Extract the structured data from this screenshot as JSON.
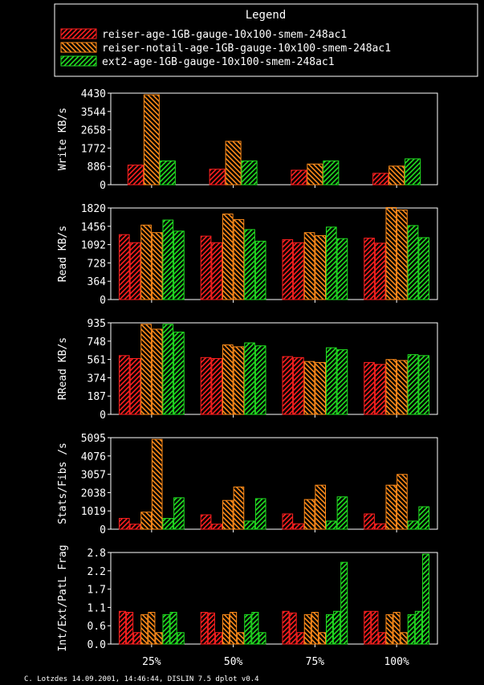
{
  "legend": {
    "title": "Legend",
    "entries": [
      {
        "label": "reiser-age-1GB-gauge-10x100-smem-248ac1",
        "color": "#ff2020"
      },
      {
        "label": "reiser-notail-age-1GB-gauge-10x100-smem-248ac1",
        "color": "#ff8c1a"
      },
      {
        "label": "ext2-age-1GB-gauge-10x100-smem-248ac1",
        "color": "#22e022"
      }
    ]
  },
  "footer": "C. Lotzdes 14.09.2001, 14:46:44, DISLIN 7.5 dplot v0.4",
  "chart_data": [
    {
      "type": "bar",
      "ylabel": "Write KB/s",
      "ylim": [
        0,
        4430
      ],
      "yticks": [
        "0",
        "886",
        "1772",
        "2658",
        "3544",
        "4430"
      ],
      "categories": [
        "25%",
        "50%",
        "75%",
        "100%"
      ],
      "bars_per_group": 3,
      "series_of_bar": [
        0,
        1,
        2
      ],
      "values": [
        [
          950,
          4350,
          1150
        ],
        [
          750,
          2100,
          1150
        ],
        [
          700,
          1000,
          1150
        ],
        [
          550,
          900,
          1250
        ]
      ]
    },
    {
      "type": "bar",
      "ylabel": "Read KB/s",
      "ylim": [
        0,
        1820
      ],
      "yticks": [
        "0",
        "364",
        "728",
        "1092",
        "1456",
        "1820"
      ],
      "categories": [
        "25%",
        "50%",
        "75%",
        "100%"
      ],
      "bars_per_group": 6,
      "series_of_bar": [
        0,
        0,
        1,
        1,
        2,
        2
      ],
      "values": [
        [
          1290,
          1130,
          1480,
          1330,
          1580,
          1360
        ],
        [
          1260,
          1130,
          1700,
          1590,
          1390,
          1160
        ],
        [
          1190,
          1130,
          1330,
          1270,
          1440,
          1210
        ],
        [
          1220,
          1120,
          1830,
          1780,
          1470,
          1230
        ]
      ]
    },
    {
      "type": "bar",
      "ylabel": "RRead KB/s",
      "ylim": [
        0,
        935
      ],
      "yticks": [
        "0",
        "187",
        "374",
        "561",
        "748",
        "935"
      ],
      "categories": [
        "25%",
        "50%",
        "75%",
        "100%"
      ],
      "bars_per_group": 6,
      "series_of_bar": [
        0,
        0,
        1,
        1,
        2,
        2
      ],
      "values": [
        [
          600,
          570,
          920,
          870,
          920,
          840
        ],
        [
          580,
          570,
          710,
          690,
          730,
          700
        ],
        [
          590,
          580,
          540,
          530,
          680,
          660
        ],
        [
          530,
          510,
          560,
          550,
          610,
          600
        ]
      ]
    },
    {
      "type": "bar",
      "ylabel": "Stats/Fibs /s",
      "ylim": [
        0,
        5095
      ],
      "yticks": [
        "0",
        "1019",
        "2038",
        "3057",
        "4076",
        "5095"
      ],
      "categories": [
        "25%",
        "50%",
        "75%",
        "100%"
      ],
      "bars_per_group": 6,
      "series_of_bar": [
        0,
        0,
        1,
        1,
        2,
        2
      ],
      "values": [
        [
          600,
          280,
          950,
          5000,
          600,
          1750
        ],
        [
          800,
          280,
          1600,
          2350,
          450,
          1700
        ],
        [
          850,
          300,
          1650,
          2450,
          450,
          1800
        ],
        [
          850,
          300,
          2450,
          3050,
          450,
          1250
        ]
      ]
    },
    {
      "type": "bar",
      "ylabel": "Int/Ext/PatL Frag",
      "ylim": [
        0,
        2.8
      ],
      "yticks": [
        "0.0",
        "0.6",
        "1.1",
        "1.7",
        "2.2",
        "2.8"
      ],
      "categories": [
        "25%",
        "50%",
        "75%",
        "100%"
      ],
      "bars_per_group": 9,
      "series_of_bar": [
        0,
        0,
        0,
        1,
        1,
        1,
        2,
        2,
        2
      ],
      "values": [
        [
          1.0,
          0.97,
          0.35,
          0.9,
          0.97,
          0.35,
          0.9,
          0.97,
          0.35
        ],
        [
          0.97,
          0.95,
          0.35,
          0.9,
          0.97,
          0.35,
          0.9,
          0.97,
          0.35
        ],
        [
          1.0,
          0.95,
          0.35,
          0.9,
          0.97,
          0.35,
          0.9,
          1.0,
          2.5
        ],
        [
          1.0,
          1.0,
          0.35,
          0.9,
          0.97,
          0.35,
          0.9,
          1.0,
          2.75
        ]
      ]
    }
  ]
}
